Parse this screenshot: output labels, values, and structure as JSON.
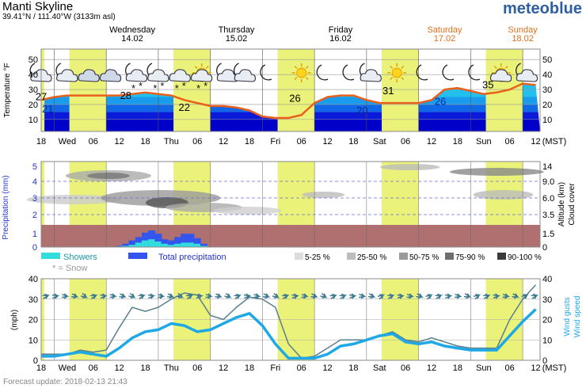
{
  "header": {
    "location": "Manti Skyline",
    "coords": "39.41°N / 111.40°W (3133m asl)",
    "brand": "meteoblue"
  },
  "days": [
    {
      "name": "Wednesday",
      "date": "14.02",
      "weekend": false
    },
    {
      "name": "Thursday",
      "date": "15.02",
      "weekend": false
    },
    {
      "name": "Friday",
      "date": "16.02",
      "weekend": false
    },
    {
      "name": "Saturday",
      "date": "17.02",
      "weekend": true
    },
    {
      "name": "Sunday",
      "date": "18.02",
      "weekend": true
    }
  ],
  "time_axis": {
    "labels": [
      "18",
      "Wed",
      "06",
      "12",
      "18",
      "Thu",
      "06",
      "12",
      "18",
      "Fri",
      "06",
      "12",
      "18",
      "Sat",
      "06",
      "12",
      "18",
      "Sun",
      "06",
      "12"
    ],
    "timezone": "(MST)"
  },
  "colors": {
    "daylight": "#eaf27a",
    "temp_line": "#e8601c",
    "weekend_day": "#e0701c",
    "precip_total": "#3355ee",
    "showers": "#33dddd",
    "wind_speed": "#1ea8e6",
    "wind_gust": "#5a7f8c",
    "ground_band": "#b07070",
    "temp_band_warm": "#22bfef",
    "temp_band_cold": "#0a0ad0"
  },
  "chart_data": [
    {
      "type": "line",
      "panel": "temperature",
      "ylabel": "Temperature °F",
      "ylim": [
        2,
        57
      ],
      "yticks": [
        10,
        20,
        30,
        40,
        50
      ],
      "x_hours": [
        0,
        6,
        12,
        18,
        24,
        30,
        36,
        42,
        48,
        54,
        60,
        66,
        72,
        78,
        84,
        90,
        96,
        102,
        108,
        114,
        120,
        126,
        132,
        138,
        144,
        150,
        156,
        162,
        168,
        174,
        180,
        186,
        192,
        198,
        204,
        210,
        216,
        222,
        228
      ],
      "series": [
        {
          "values": [
            23,
            25,
            26,
            26,
            26,
            26,
            26,
            27,
            28,
            27,
            26,
            23,
            21,
            19,
            19,
            18,
            16,
            12,
            11,
            11,
            13,
            21,
            25,
            26,
            26,
            23,
            21,
            21,
            21,
            21,
            23,
            30,
            31,
            29,
            27,
            28,
            30,
            34,
            33
          ]
        }
      ],
      "annotations": [
        {
          "text": "27",
          "x": 0
        },
        {
          "text": "21",
          "x": 3
        },
        {
          "text": "28",
          "x": 39
        },
        {
          "text": "22",
          "x": 66
        },
        {
          "text": "26",
          "x": 117
        },
        {
          "text": "20",
          "x": 148
        },
        {
          "text": "31",
          "x": 160
        },
        {
          "text": "26",
          "x": 184
        },
        {
          "text": "35",
          "x": 206
        }
      ],
      "weather_icons": [
        {
          "x": 0,
          "icon": "night-cloud"
        },
        {
          "x": 12,
          "icon": "night-cloud"
        },
        {
          "x": 22,
          "icon": "cloud"
        },
        {
          "x": 32,
          "icon": "cloud"
        },
        {
          "x": 44,
          "icon": "night-cloud-snow"
        },
        {
          "x": 54,
          "icon": "night-cloud-snow"
        },
        {
          "x": 64,
          "icon": "cloud-snow"
        },
        {
          "x": 74,
          "icon": "sun-cloud-snow"
        },
        {
          "x": 86,
          "icon": "night-cloud"
        },
        {
          "x": 94,
          "icon": "night-cloud"
        },
        {
          "x": 104,
          "icon": "moon"
        },
        {
          "x": 120,
          "icon": "sun"
        },
        {
          "x": 130,
          "icon": "moon"
        },
        {
          "x": 142,
          "icon": "moon"
        },
        {
          "x": 152,
          "icon": "night-cloud"
        },
        {
          "x": 164,
          "icon": "sun"
        },
        {
          "x": 176,
          "icon": "moon"
        },
        {
          "x": 188,
          "icon": "moon"
        },
        {
          "x": 200,
          "icon": "moon"
        },
        {
          "x": 212,
          "icon": "sun-cloud"
        },
        {
          "x": 224,
          "icon": "night-cloud"
        }
      ]
    },
    {
      "type": "bar",
      "panel": "precipitation",
      "ylabel": "Precipitation (mm)",
      "ylabel_right": [
        "Altitude (km)",
        "Cloud cover"
      ],
      "ylim": [
        0,
        5
      ],
      "yticks": [
        0,
        1,
        2,
        3,
        4,
        5
      ],
      "alt_ticks": [
        "0",
        "1.5",
        "3.5",
        "6.0",
        "9.0",
        "14"
      ],
      "x_hours": [
        36,
        39,
        42,
        45,
        48,
        51,
        54,
        57,
        60,
        63,
        66,
        69,
        72,
        75
      ],
      "series": [
        {
          "name": "Total precipitation",
          "values": [
            0.1,
            0.3,
            0.6,
            0.9,
            1.3,
            1.5,
            1.2,
            0.7,
            0.6,
            0.9,
            1.2,
            1.2,
            0.8,
            0.3
          ]
        },
        {
          "name": "Showers",
          "values": [
            0.05,
            0.1,
            0.2,
            0.4,
            0.6,
            0.7,
            0.5,
            0.3,
            0.2,
            0.3,
            0.4,
            0.4,
            0.3,
            0.1
          ]
        }
      ],
      "legend": {
        "showers": "Showers",
        "total": "Total precipitation",
        "snow": "* = Snow",
        "cloud_classes": [
          "5-25 %",
          "25-50 %",
          "50-75 %",
          "75-90 %",
          "90-100 %"
        ]
      }
    },
    {
      "type": "line",
      "panel": "wind",
      "ylabel": "(mph)",
      "ylabel_right": [
        "Wind gusts",
        "Wind speed"
      ],
      "ylim": [
        0,
        40
      ],
      "yticks": [
        0,
        10,
        20,
        30,
        40
      ],
      "x_hours": [
        0,
        6,
        12,
        18,
        24,
        30,
        36,
        42,
        48,
        54,
        60,
        66,
        72,
        78,
        84,
        90,
        96,
        102,
        108,
        114,
        120,
        126,
        132,
        138,
        144,
        150,
        156,
        162,
        168,
        174,
        180,
        186,
        192,
        198,
        204,
        210,
        216,
        222,
        228
      ],
      "series": [
        {
          "name": "Wind gusts",
          "values": [
            3,
            3,
            3,
            5,
            4,
            5,
            16,
            26,
            24,
            26,
            30,
            33,
            32,
            22,
            20,
            26,
            31,
            30,
            26,
            8,
            1,
            2,
            6,
            10,
            10,
            10,
            12,
            14,
            10,
            9,
            11,
            9,
            7,
            6,
            6,
            6,
            20,
            30,
            37
          ]
        },
        {
          "name": "Wind speed",
          "values": [
            2,
            2,
            3,
            4,
            3,
            2,
            6,
            11,
            14,
            15,
            18,
            17,
            14,
            15,
            18,
            21,
            23,
            17,
            8,
            1,
            1,
            1,
            3,
            7,
            8,
            10,
            12,
            13,
            9,
            8,
            9,
            7,
            6,
            5,
            5,
            5,
            12,
            19,
            25
          ]
        }
      ]
    }
  ],
  "footer": {
    "update": "Forecast update: 2018-02-13 21:43"
  }
}
